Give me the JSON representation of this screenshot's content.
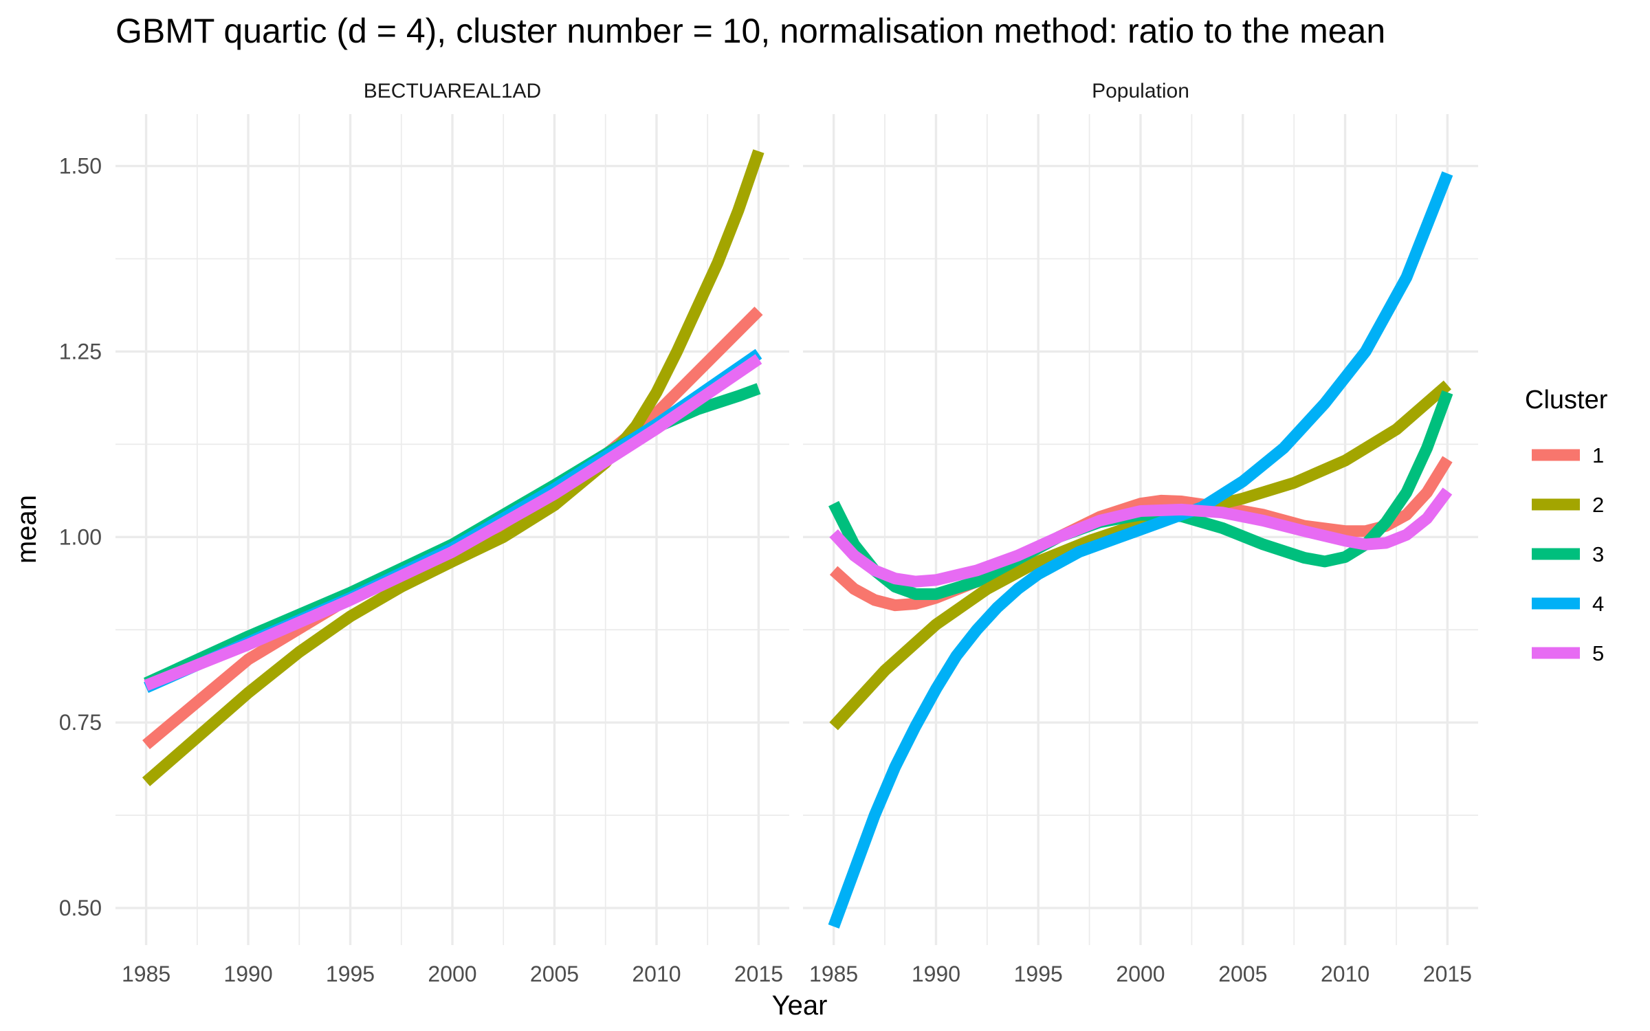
{
  "chart_data": {
    "type": "line",
    "title": "GBMT quartic (d = 4), cluster number = 10, normalisation method: ratio to the mean",
    "xlabel": "Year",
    "ylabel": "mean",
    "x_ticks": [
      1985,
      1990,
      1995,
      2000,
      2005,
      2010,
      2015
    ],
    "y_ticks": [
      0.5,
      0.75,
      1.0,
      1.25,
      1.5
    ],
    "y_tick_labels": [
      "0.50",
      "0.75",
      "1.00",
      "1.25",
      "1.50"
    ],
    "x_tick_labels": [
      "1985",
      "1990",
      "1995",
      "2000",
      "2005",
      "2010",
      "2015"
    ],
    "xlim": [
      1983.5,
      2016.5
    ],
    "ylim": [
      0.45,
      1.57
    ],
    "grid": true,
    "legend": {
      "title": "Cluster",
      "placement": "right",
      "entries": [
        "1",
        "2",
        "3",
        "4",
        "5"
      ],
      "colors": [
        "#F8766D",
        "#A3A500",
        "#00BF7D",
        "#00B0F6",
        "#E76BF3"
      ]
    },
    "panels": [
      {
        "label": "BECTUAREAL1AD",
        "series": [
          {
            "name": "1",
            "color": "#F8766D",
            "points": [
              [
                1985,
                0.72
              ],
              [
                1990,
                0.835
              ],
              [
                1995,
                0.918
              ],
              [
                2000,
                0.98
              ],
              [
                2005,
                1.055
              ],
              [
                2010,
                1.167
              ],
              [
                2015,
                1.305
              ]
            ]
          },
          {
            "name": "2",
            "color": "#A3A500",
            "points": [
              [
                1985,
                0.67
              ],
              [
                1987.5,
                0.73
              ],
              [
                1990,
                0.79
              ],
              [
                1992.5,
                0.845
              ],
              [
                1995,
                0.893
              ],
              [
                1997.5,
                0.933
              ],
              [
                2000,
                0.967
              ],
              [
                2002.5,
                1.0
              ],
              [
                2005,
                1.043
              ],
              [
                2007.5,
                1.1
              ],
              [
                2009,
                1.15
              ],
              [
                2010,
                1.195
              ],
              [
                2011,
                1.25
              ],
              [
                2012,
                1.31
              ],
              [
                2013,
                1.37
              ],
              [
                2014,
                1.44
              ],
              [
                2015,
                1.52
              ]
            ]
          },
          {
            "name": "3",
            "color": "#00BF7D",
            "points": [
              [
                1985,
                0.803
              ],
              [
                1990,
                0.866
              ],
              [
                1995,
                0.925
              ],
              [
                2000,
                0.99
              ],
              [
                2005,
                1.07
              ],
              [
                2008,
                1.12
              ],
              [
                2010,
                1.148
              ],
              [
                2012,
                1.172
              ],
              [
                2014,
                1.19
              ],
              [
                2015,
                1.2
              ]
            ]
          },
          {
            "name": "4",
            "color": "#00B0F6",
            "points": [
              [
                1985,
                0.797
              ],
              [
                1990,
                0.858
              ],
              [
                1995,
                0.918
              ],
              [
                2000,
                0.985
              ],
              [
                2005,
                1.065
              ],
              [
                2010,
                1.152
              ],
              [
                2015,
                1.247
              ]
            ]
          },
          {
            "name": "5",
            "color": "#E76BF3",
            "points": [
              [
                1985,
                0.8
              ],
              [
                1990,
                0.855
              ],
              [
                1995,
                0.915
              ],
              [
                2000,
                0.98
              ],
              [
                2005,
                1.058
              ],
              [
                2010,
                1.146
              ],
              [
                2015,
                1.24
              ]
            ]
          }
        ]
      },
      {
        "label": "Population",
        "series": [
          {
            "name": "1",
            "color": "#F8766D",
            "points": [
              [
                1985,
                0.955
              ],
              [
                1986,
                0.93
              ],
              [
                1987,
                0.915
              ],
              [
                1988,
                0.908
              ],
              [
                1989,
                0.91
              ],
              [
                1990,
                0.918
              ],
              [
                1992,
                0.94
              ],
              [
                1994,
                0.97
              ],
              [
                1996,
                1.0
              ],
              [
                1998,
                1.027
              ],
              [
                2000,
                1.045
              ],
              [
                2001,
                1.049
              ],
              [
                2002,
                1.048
              ],
              [
                2004,
                1.04
              ],
              [
                2006,
                1.03
              ],
              [
                2008,
                1.015
              ],
              [
                2010,
                1.008
              ],
              [
                2011,
                1.008
              ],
              [
                2012,
                1.015
              ],
              [
                2013,
                1.03
              ],
              [
                2014,
                1.06
              ],
              [
                2015,
                1.105
              ]
            ]
          },
          {
            "name": "2",
            "color": "#A3A500",
            "points": [
              [
                1985,
                0.745
              ],
              [
                1987.5,
                0.82
              ],
              [
                1990,
                0.882
              ],
              [
                1992.5,
                0.93
              ],
              [
                1995,
                0.967
              ],
              [
                1997.5,
                0.995
              ],
              [
                2000,
                1.018
              ],
              [
                2002.5,
                1.035
              ],
              [
                2005,
                1.052
              ],
              [
                2007.5,
                1.073
              ],
              [
                2010,
                1.103
              ],
              [
                2012.5,
                1.145
              ],
              [
                2015,
                1.205
              ]
            ]
          },
          {
            "name": "3",
            "color": "#00BF7D",
            "points": [
              [
                1985,
                1.045
              ],
              [
                1986,
                0.99
              ],
              [
                1987,
                0.955
              ],
              [
                1988,
                0.933
              ],
              [
                1989,
                0.923
              ],
              [
                1990,
                0.923
              ],
              [
                1992,
                0.94
              ],
              [
                1994,
                0.97
              ],
              [
                1996,
                1.0
              ],
              [
                1998,
                1.02
              ],
              [
                2000,
                1.03
              ],
              [
                2002,
                1.028
              ],
              [
                2004,
                1.012
              ],
              [
                2006,
                0.99
              ],
              [
                2008,
                0.972
              ],
              [
                2009,
                0.967
              ],
              [
                2010,
                0.973
              ],
              [
                2011,
                0.99
              ],
              [
                2012,
                1.02
              ],
              [
                2013,
                1.06
              ],
              [
                2014,
                1.12
              ],
              [
                2015,
                1.195
              ]
            ]
          },
          {
            "name": "4",
            "color": "#00B0F6",
            "points": [
              [
                1985,
                0.475
              ],
              [
                1986,
                0.55
              ],
              [
                1987,
                0.625
              ],
              [
                1988,
                0.69
              ],
              [
                1989,
                0.745
              ],
              [
                1990,
                0.795
              ],
              [
                1991,
                0.84
              ],
              [
                1992,
                0.875
              ],
              [
                1993,
                0.905
              ],
              [
                1994,
                0.93
              ],
              [
                1995,
                0.95
              ],
              [
                1997,
                0.98
              ],
              [
                1999,
                1.0
              ],
              [
                2001,
                1.02
              ],
              [
                2003,
                1.04
              ],
              [
                2005,
                1.075
              ],
              [
                2007,
                1.12
              ],
              [
                2009,
                1.18
              ],
              [
                2011,
                1.25
              ],
              [
                2013,
                1.35
              ],
              [
                2015,
                1.49
              ]
            ]
          },
          {
            "name": "5",
            "color": "#E76BF3",
            "points": [
              [
                1985,
                1.005
              ],
              [
                1986,
                0.975
              ],
              [
                1987,
                0.955
              ],
              [
                1988,
                0.944
              ],
              [
                1989,
                0.94
              ],
              [
                1990,
                0.942
              ],
              [
                1992,
                0.955
              ],
              [
                1994,
                0.975
              ],
              [
                1996,
                1.0
              ],
              [
                1998,
                1.022
              ],
              [
                2000,
                1.035
              ],
              [
                2002,
                1.037
              ],
              [
                2004,
                1.033
              ],
              [
                2006,
                1.022
              ],
              [
                2008,
                1.008
              ],
              [
                2010,
                0.995
              ],
              [
                2011,
                0.99
              ],
              [
                2012,
                0.992
              ],
              [
                2013,
                1.003
              ],
              [
                2014,
                1.025
              ],
              [
                2015,
                1.062
              ]
            ]
          }
        ]
      }
    ]
  }
}
